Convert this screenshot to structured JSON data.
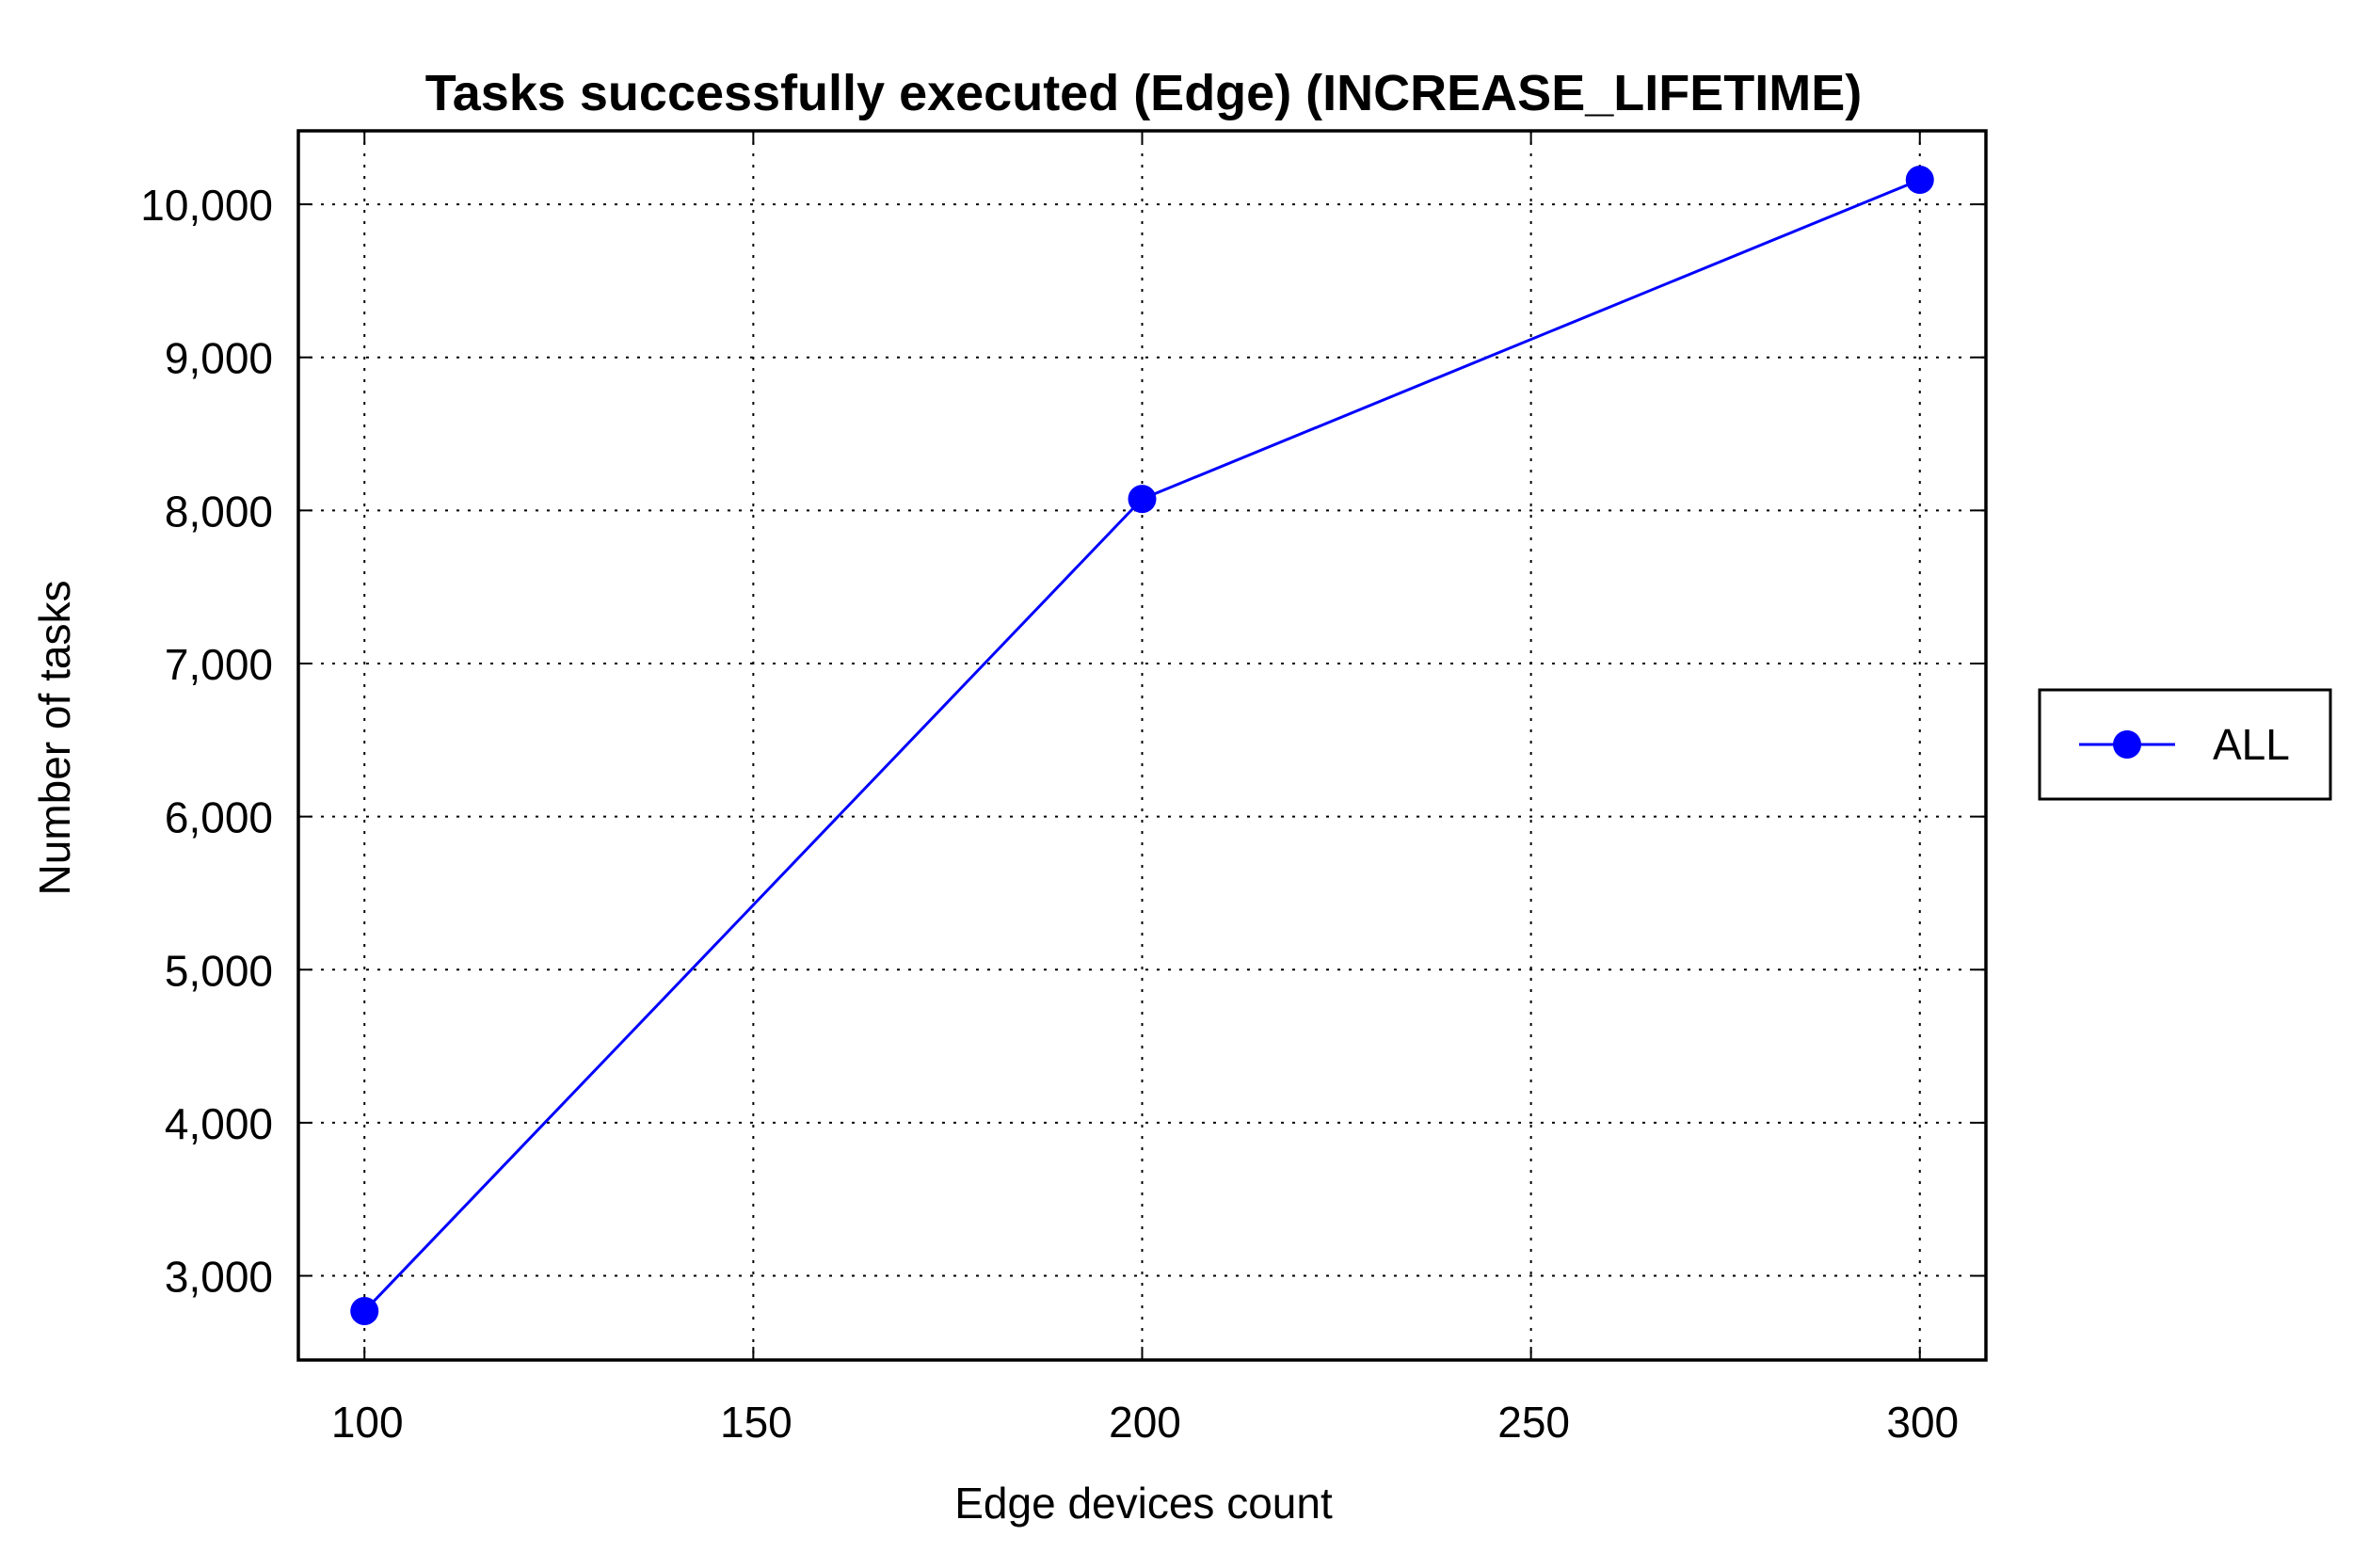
{
  "chart_data": {
    "type": "line",
    "title": "Tasks successfully executed (Edge) (INCREASE_LIFETIME)",
    "xlabel": "Edge devices count",
    "ylabel": "Number of tasks",
    "xlim": [
      91.5,
      308.5
    ],
    "ylim": [
      2450,
      10480
    ],
    "x_ticks": [
      100,
      150,
      200,
      250,
      300
    ],
    "x_tick_labels": [
      "100",
      "150",
      "200",
      "250",
      "300"
    ],
    "y_ticks": [
      3000,
      4000,
      5000,
      6000,
      7000,
      8000,
      9000,
      10000
    ],
    "y_tick_labels": [
      "3,000",
      "4,000",
      "5,000",
      "6,000",
      "7,000",
      "8,000",
      "9,000",
      "10,000"
    ],
    "grid": true,
    "legend_position": "right",
    "series": [
      {
        "name": "ALL",
        "color": "#0000ff",
        "marker": "circle",
        "x": [
          100,
          200,
          300
        ],
        "y": [
          2770,
          8075,
          10160
        ]
      }
    ]
  }
}
